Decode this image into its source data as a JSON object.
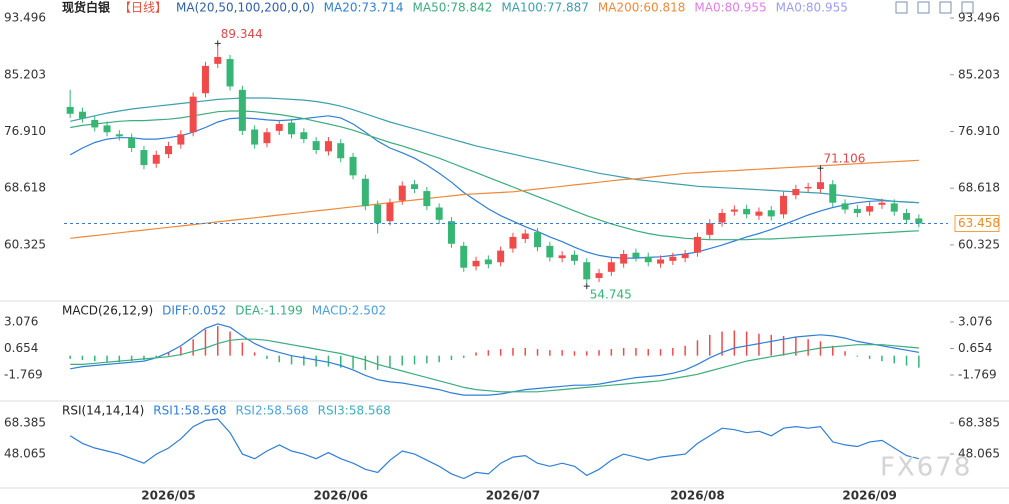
{
  "watermark": "FX678",
  "chart_data": [
    {
      "type": "candlestick",
      "title": "现货白银",
      "period": "【日线】",
      "indicator": "MA(20,50,100,200,0,0)",
      "categories": [
        null,
        null,
        null,
        null,
        null,
        null,
        null,
        null,
        "2026/05",
        null,
        null,
        null,
        null,
        null,
        null,
        null,
        null,
        null,
        null,
        null,
        null,
        null,
        "2026/06",
        null,
        null,
        null,
        null,
        null,
        null,
        null,
        null,
        null,
        null,
        null,
        null,
        null,
        "2026/07",
        null,
        null,
        null,
        null,
        null,
        null,
        null,
        null,
        null,
        null,
        null,
        null,
        null,
        null,
        "2026/08",
        null,
        null,
        null,
        null,
        null,
        null,
        null,
        null,
        null,
        null,
        null,
        null,
        null,
        "2026/09",
        null,
        null,
        null,
        null
      ],
      "open": [
        80.5,
        79.8,
        78.6,
        77.8,
        76.5,
        76.0,
        74.2,
        72.2,
        73.6,
        75.0,
        76.8,
        82.5,
        86.8,
        87.5,
        83.0,
        77.2,
        75.2,
        77.0,
        78.2,
        76.8,
        75.5,
        74.0,
        75.2,
        73.2,
        70.0,
        66.2,
        63.8,
        66.8,
        69.2,
        68.2,
        65.8,
        63.8,
        60.2,
        57.2,
        58.2,
        57.8,
        59.8,
        61.2,
        62.2,
        60.2,
        58.4,
        58.9,
        57.8,
        55.5,
        56.4,
        57.6,
        59.2,
        58.6,
        57.6,
        58.0,
        58.4,
        59.2,
        61.8,
        63.6,
        65.2,
        65.6,
        64.6,
        65.4,
        64.8,
        67.6,
        68.6,
        68.5,
        69.2,
        66.4,
        65.6,
        65.2,
        66.2,
        66.4,
        65.0,
        64.2
      ],
      "high": [
        83.0,
        80.4,
        79.2,
        78.4,
        77.1,
        76.6,
        74.8,
        74.1,
        75.4,
        77.1,
        82.6,
        87.1,
        89.344,
        88.1,
        83.6,
        77.8,
        77.4,
        78.6,
        78.8,
        77.4,
        76.1,
        76.1,
        75.8,
        73.8,
        70.6,
        66.8,
        67.1,
        69.6,
        69.8,
        68.8,
        66.4,
        64.4,
        60.8,
        58.6,
        58.8,
        60.1,
        62.1,
        62.6,
        62.8,
        60.8,
        59.4,
        59.5,
        58.4,
        56.8,
        58.4,
        59.6,
        59.8,
        59.2,
        58.8,
        59.2,
        59.6,
        62.1,
        64.1,
        65.6,
        66.1,
        66.2,
        65.8,
        66.0,
        68.1,
        69.1,
        69.4,
        71.106,
        69.8,
        67.0,
        66.2,
        66.6,
        67.1,
        67.0,
        65.6,
        64.8
      ],
      "low": [
        78.9,
        78.2,
        76.9,
        76.2,
        75.6,
        73.9,
        71.4,
        71.6,
        73.0,
        74.4,
        76.2,
        81.9,
        86.2,
        82.9,
        76.4,
        74.4,
        74.6,
        76.4,
        75.9,
        75.2,
        73.6,
        73.4,
        72.4,
        69.9,
        65.4,
        62.0,
        63.2,
        66.2,
        67.9,
        65.4,
        63.4,
        59.9,
        56.4,
        56.6,
        56.9,
        57.2,
        59.2,
        60.6,
        59.4,
        57.9,
        57.8,
        57.4,
        54.745,
        54.9,
        55.8,
        57.0,
        57.9,
        57.2,
        57.0,
        57.4,
        57.8,
        58.6,
        61.2,
        63.0,
        64.6,
        64.2,
        64.0,
        63.9,
        64.2,
        67.0,
        68.0,
        67.9,
        65.9,
        64.9,
        64.4,
        64.6,
        65.6,
        64.6,
        63.4,
        62.9
      ],
      "close": [
        79.5,
        78.8,
        77.5,
        76.8,
        76.2,
        74.5,
        72.0,
        73.5,
        74.8,
        76.5,
        82.0,
        86.5,
        87.8,
        83.5,
        77.0,
        75.0,
        76.8,
        78.0,
        76.5,
        75.8,
        74.2,
        75.5,
        73.0,
        70.5,
        66.0,
        63.5,
        66.5,
        69.0,
        68.5,
        66.0,
        64.0,
        60.5,
        57.0,
        58.0,
        57.5,
        59.5,
        61.5,
        62.0,
        60.0,
        58.5,
        58.8,
        58.0,
        55.3,
        56.2,
        57.8,
        59.0,
        58.5,
        57.8,
        58.2,
        58.6,
        59.0,
        61.5,
        63.5,
        65.0,
        65.5,
        64.8,
        65.2,
        64.5,
        67.5,
        68.5,
        68.8,
        69.5,
        66.5,
        65.5,
        65.0,
        66.0,
        66.5,
        65.2,
        64.0,
        63.458
      ],
      "up_color": "#f04a4a",
      "down_color": "#36b574",
      "series": [
        {
          "name": "MA20:73.714",
          "color": "#2f7fd8",
          "values": [
            73.5,
            74.5,
            75.3,
            75.8,
            76.0,
            76.0,
            75.8,
            75.8,
            76.0,
            76.3,
            76.8,
            77.5,
            78.3,
            78.8,
            78.9,
            78.8,
            78.6,
            78.5,
            78.6,
            78.8,
            79.0,
            79.2,
            78.9,
            78.0,
            76.8,
            75.5,
            74.5,
            73.8,
            73.0,
            72.0,
            70.8,
            69.5,
            68.0,
            66.8,
            65.6,
            64.6,
            63.8,
            63.0,
            62.3,
            61.5,
            60.8,
            60.0,
            59.3,
            58.8,
            58.5,
            58.4,
            58.4,
            58.5,
            58.6,
            58.8,
            59.0,
            59.3,
            59.8,
            60.3,
            60.9,
            61.5,
            62.0,
            62.6,
            63.3,
            64.0,
            64.7,
            65.3,
            65.8,
            66.2,
            66.5,
            66.7,
            66.8,
            66.7,
            66.6,
            66.5
          ]
        },
        {
          "name": "MA50:78.842",
          "color": "#3aae7c",
          "values": [
            77.5,
            77.8,
            78.0,
            78.2,
            78.4,
            78.5,
            78.5,
            78.6,
            78.7,
            78.9,
            79.2,
            79.5,
            79.8,
            79.9,
            79.9,
            79.8,
            79.6,
            79.4,
            79.1,
            78.8,
            78.4,
            78.0,
            77.6,
            77.1,
            76.5,
            75.9,
            75.3,
            74.8,
            74.2,
            73.6,
            73.0,
            72.3,
            71.6,
            70.9,
            70.2,
            69.5,
            68.8,
            68.1,
            67.4,
            66.7,
            66.0,
            65.3,
            64.6,
            64.0,
            63.4,
            62.9,
            62.4,
            62.0,
            61.7,
            61.5,
            61.3,
            61.2,
            61.1,
            61.1,
            61.1,
            61.1,
            61.2,
            61.2,
            61.3,
            61.4,
            61.5,
            61.6,
            61.7,
            61.8,
            61.9,
            62.0,
            62.1,
            62.2,
            62.3,
            62.4
          ]
        },
        {
          "name": "MA100:77.887",
          "color": "#3b9fb0",
          "values": [
            78.4,
            78.8,
            79.2,
            79.6,
            79.9,
            80.2,
            80.4,
            80.6,
            80.8,
            81.0,
            81.2,
            81.4,
            81.6,
            81.7,
            81.8,
            81.8,
            81.8,
            81.7,
            81.6,
            81.5,
            81.3,
            81.0,
            80.6,
            80.1,
            79.5,
            78.9,
            78.3,
            77.8,
            77.3,
            76.8,
            76.3,
            75.8,
            75.3,
            74.8,
            74.4,
            74.0,
            73.6,
            73.2,
            72.8,
            72.4,
            72.0,
            71.6,
            71.2,
            70.8,
            70.5,
            70.2,
            69.9,
            69.7,
            69.5,
            69.3,
            69.1,
            68.9,
            68.8,
            68.7,
            68.6,
            68.5,
            68.4,
            68.3,
            68.2,
            68.1,
            68.0,
            67.9,
            67.7,
            67.5,
            67.3,
            67.1,
            66.9,
            66.7,
            66.6,
            66.5
          ]
        },
        {
          "name": "MA200:60.818",
          "color": "#ee8a3a",
          "values": [
            61.3,
            61.5,
            61.7,
            61.9,
            62.1,
            62.3,
            62.5,
            62.7,
            62.9,
            63.1,
            63.3,
            63.5,
            63.7,
            63.9,
            64.1,
            64.3,
            64.5,
            64.7,
            64.9,
            65.1,
            65.3,
            65.5,
            65.7,
            65.9,
            66.1,
            66.3,
            66.5,
            66.7,
            66.9,
            67.1,
            67.3,
            67.5,
            67.7,
            67.8,
            67.9,
            68.0,
            68.1,
            68.3,
            68.5,
            68.7,
            68.9,
            69.1,
            69.3,
            69.5,
            69.7,
            69.9,
            70.0,
            70.2,
            70.4,
            70.6,
            70.8,
            70.9,
            71.0,
            71.1,
            71.2,
            71.3,
            71.4,
            71.5,
            71.6,
            71.7,
            71.8,
            71.9,
            72.0,
            72.1,
            72.2,
            72.3,
            72.4,
            72.5,
            72.6,
            72.7
          ]
        }
      ],
      "legend_extra": [
        {
          "name": "MA0:80.955",
          "color": "#e27de2"
        },
        {
          "name": "MA0:80.955",
          "color": "#9d9df0"
        }
      ],
      "ylim": [
        52.28,
        96.13
      ],
      "yticks": [
        93.496,
        85.203,
        {
          "value": 76.91,
          "label": "76.910"
        },
        68.618,
        60.325
      ]
    },
    {
      "type": "macd",
      "title": "MACD(26,12,9)",
      "series": [
        {
          "name": "DIFF:0.052",
          "color": "#2f7fd8",
          "values": [
            -1.2,
            -1.0,
            -0.9,
            -0.8,
            -0.7,
            -0.6,
            -0.5,
            -0.2,
            0.3,
            0.9,
            1.7,
            2.5,
            2.9,
            2.6,
            1.8,
            1.1,
            0.6,
            0.3,
            0.0,
            -0.2,
            -0.4,
            -0.6,
            -0.9,
            -1.3,
            -1.8,
            -2.2,
            -2.4,
            -2.5,
            -2.7,
            -2.9,
            -3.1,
            -3.4,
            -3.6,
            -3.6,
            -3.6,
            -3.5,
            -3.3,
            -3.1,
            -3.0,
            -2.9,
            -2.8,
            -2.7,
            -2.7,
            -2.6,
            -2.4,
            -2.2,
            -2.0,
            -1.9,
            -1.8,
            -1.6,
            -1.3,
            -0.8,
            -0.2,
            0.3,
            0.7,
            0.9,
            1.1,
            1.3,
            1.5,
            1.7,
            1.8,
            1.9,
            1.8,
            1.6,
            1.3,
            1.1,
            0.9,
            0.7,
            0.5,
            0.3
          ]
        },
        {
          "name": "DEA:-1.199",
          "color": "#3aae7c",
          "values": [
            -0.8,
            -0.8,
            -0.7,
            -0.6,
            -0.5,
            -0.4,
            -0.3,
            -0.2,
            -0.1,
            0.1,
            0.4,
            0.7,
            1.1,
            1.4,
            1.5,
            1.5,
            1.4,
            1.2,
            1.0,
            0.8,
            0.6,
            0.4,
            0.2,
            -0.1,
            -0.4,
            -0.8,
            -1.1,
            -1.4,
            -1.7,
            -2.0,
            -2.3,
            -2.6,
            -2.9,
            -3.1,
            -3.2,
            -3.3,
            -3.3,
            -3.3,
            -3.3,
            -3.2,
            -3.1,
            -3.0,
            -2.9,
            -2.8,
            -2.7,
            -2.6,
            -2.5,
            -2.4,
            -2.3,
            -2.1,
            -1.9,
            -1.7,
            -1.4,
            -1.1,
            -0.8,
            -0.5,
            -0.3,
            -0.1,
            0.1,
            0.3,
            0.5,
            0.7,
            0.8,
            0.9,
            1.0,
            1.0,
            1.0,
            0.9,
            0.8,
            0.7
          ]
        }
      ],
      "histogram": {
        "name": "MACD:2.502",
        "color": "#4a9fd8",
        "up_color": "#f04a4a",
        "down_color": "#36b574",
        "values": [
          -0.3,
          -0.4,
          -0.5,
          -0.6,
          -0.6,
          -0.5,
          -0.4,
          -0.2,
          0.3,
          0.8,
          1.5,
          2.4,
          2.7,
          2.2,
          1.2,
          0.3,
          -0.3,
          -0.6,
          -0.8,
          -0.9,
          -1.0,
          -1.0,
          -1.1,
          -1.2,
          -1.3,
          -1.3,
          -1.1,
          -0.9,
          -0.8,
          -0.7,
          -0.6,
          -0.4,
          -0.2,
          0.3,
          0.5,
          0.6,
          0.7,
          0.7,
          0.6,
          0.5,
          0.5,
          0.4,
          0.4,
          0.5,
          0.6,
          0.7,
          0.7,
          0.6,
          0.6,
          0.7,
          0.9,
          1.4,
          1.9,
          2.2,
          2.3,
          2.2,
          2.0,
          1.9,
          1.8,
          1.7,
          1.5,
          1.3,
          0.9,
          0.4,
          -0.1,
          -0.3,
          -0.5,
          -0.7,
          -0.9,
          -1.1
        ]
      },
      "ylim": [
        -4.05,
        4.9
      ],
      "yticks": [
        3.076,
        0.654,
        -1.769
      ]
    },
    {
      "type": "rsi",
      "title": "RSI(14,14,14)",
      "series": [
        {
          "name": "RSI1:58.568",
          "color": "#2f7fd8",
          "values": [
            60,
            55,
            52,
            50,
            48,
            45,
            42,
            48,
            52,
            58,
            66,
            70,
            71,
            62,
            48,
            45,
            50,
            54,
            50,
            48,
            45,
            49,
            45,
            42,
            38,
            36,
            44,
            50,
            48,
            44,
            40,
            35,
            32,
            36,
            35,
            42,
            46,
            47,
            42,
            40,
            42,
            40,
            34,
            38,
            44,
            48,
            46,
            44,
            46,
            47,
            48,
            55,
            60,
            65,
            64,
            62,
            63,
            60,
            65,
            66,
            65,
            66,
            56,
            54,
            53,
            56,
            57,
            52,
            47,
            45
          ]
        }
      ],
      "legend_extra": [
        {
          "name": "RSI2:58.568",
          "color": "#49a6dc"
        },
        {
          "name": "RSI3:58.568",
          "color": "#3bb0c0"
        }
      ],
      "ylim": [
        25.77,
        82.16
      ],
      "yticks": [
        68.385,
        48.065
      ]
    }
  ]
}
